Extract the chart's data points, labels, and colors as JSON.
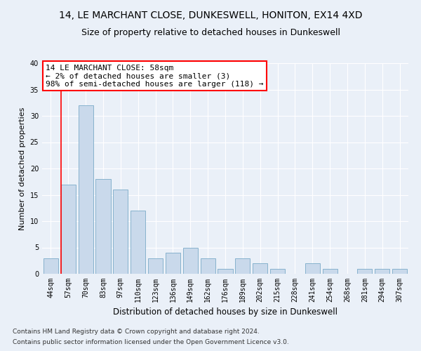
{
  "title": "14, LE MARCHANT CLOSE, DUNKESWELL, HONITON, EX14 4XD",
  "subtitle": "Size of property relative to detached houses in Dunkeswell",
  "xlabel": "Distribution of detached houses by size in Dunkeswell",
  "ylabel": "Number of detached properties",
  "categories": [
    "44sqm",
    "57sqm",
    "70sqm",
    "83sqm",
    "97sqm",
    "110sqm",
    "123sqm",
    "136sqm",
    "149sqm",
    "162sqm",
    "176sqm",
    "189sqm",
    "202sqm",
    "215sqm",
    "228sqm",
    "241sqm",
    "254sqm",
    "268sqm",
    "281sqm",
    "294sqm",
    "307sqm"
  ],
  "values": [
    3,
    17,
    32,
    18,
    16,
    12,
    3,
    4,
    5,
    3,
    1,
    3,
    2,
    1,
    0,
    2,
    1,
    0,
    1,
    1,
    1
  ],
  "bar_color": "#c9d9eb",
  "bar_edge_color": "#7aaac8",
  "annotation_box_text": "14 LE MARCHANT CLOSE: 58sqm\n← 2% of detached houses are smaller (3)\n98% of semi-detached houses are larger (118) →",
  "ylim": [
    0,
    40
  ],
  "yticks": [
    0,
    5,
    10,
    15,
    20,
    25,
    30,
    35,
    40
  ],
  "footer1": "Contains HM Land Registry data © Crown copyright and database right 2024.",
  "footer2": "Contains public sector information licensed under the Open Government Licence v3.0.",
  "bg_color": "#eaf0f8",
  "plot_bg_color": "#eaf0f8",
  "grid_color": "#ffffff",
  "title_fontsize": 10,
  "subtitle_fontsize": 9,
  "xlabel_fontsize": 8.5,
  "ylabel_fontsize": 8,
  "tick_fontsize": 7,
  "annotation_fontsize": 8,
  "footer_fontsize": 6.5
}
